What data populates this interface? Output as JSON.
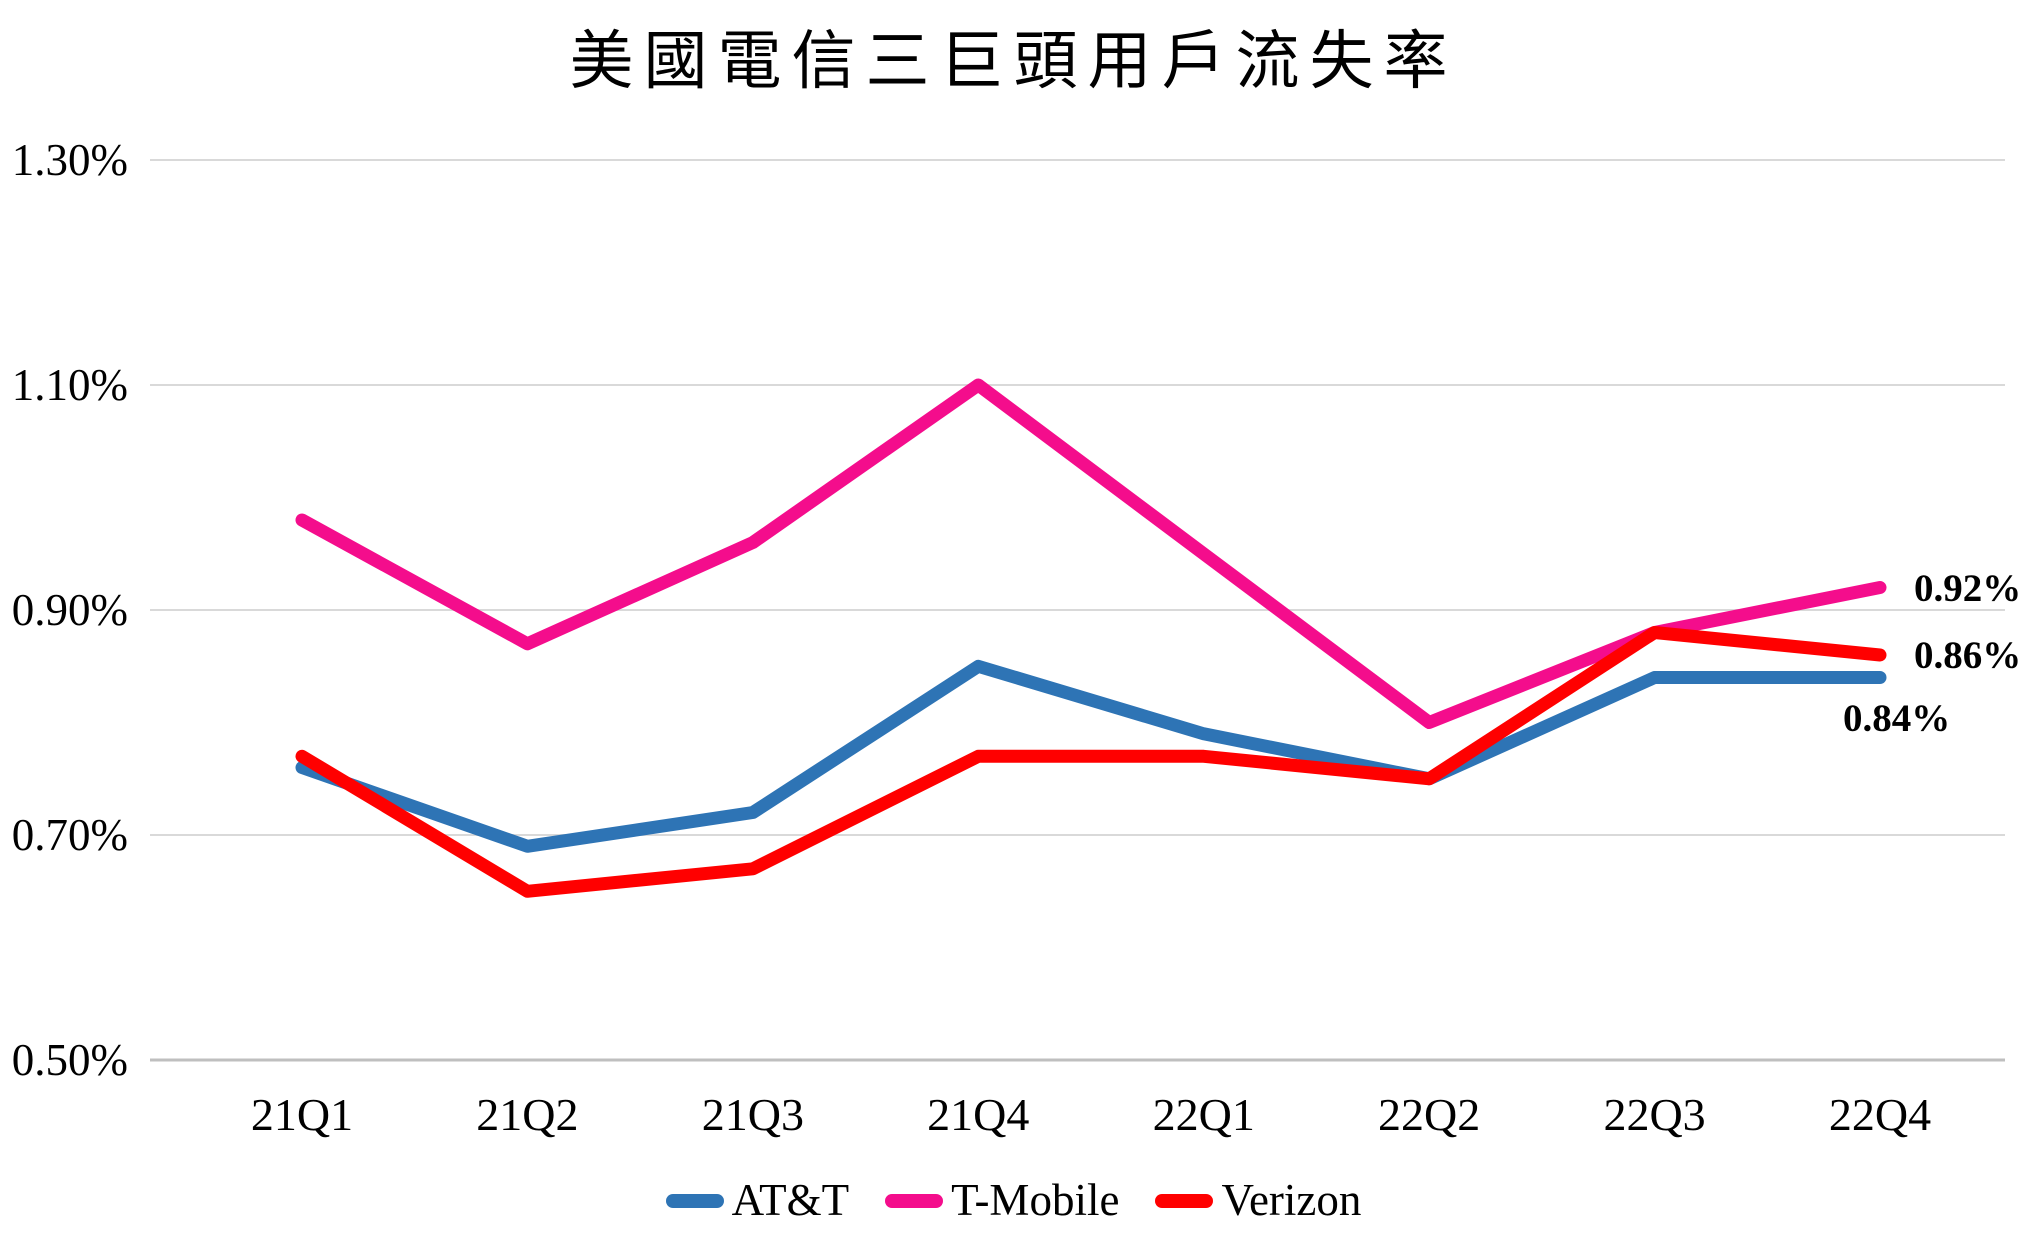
{
  "chart_data": {
    "type": "line",
    "title": "美國電信三巨頭用戶流失率",
    "categories": [
      "21Q1",
      "21Q2",
      "21Q3",
      "21Q4",
      "22Q1",
      "22Q2",
      "22Q3",
      "22Q4"
    ],
    "series": [
      {
        "name": "AT&T",
        "color": "#2E74B5",
        "values": [
          0.76,
          0.69,
          0.72,
          0.85,
          0.79,
          0.75,
          0.84,
          0.84
        ]
      },
      {
        "name": "T-Mobile",
        "color": "#F40D8C",
        "values": [
          0.98,
          0.87,
          0.96,
          1.1,
          0.95,
          0.8,
          0.88,
          0.92
        ]
      },
      {
        "name": "Verizon",
        "color": "#FF0000",
        "values": [
          0.77,
          0.65,
          0.67,
          0.77,
          0.77,
          0.75,
          0.88,
          0.86
        ]
      }
    ],
    "xlabel": "",
    "ylabel": "",
    "y_axis": {
      "min": 0.5,
      "max": 1.3,
      "step": 0.2,
      "ticks": [
        1.3,
        1.1,
        0.9,
        0.7,
        0.5
      ],
      "tick_labels": [
        "1.30%",
        "1.10%",
        "0.90%",
        "0.70%",
        "0.50%"
      ]
    },
    "grid": "horizontal",
    "legend_position": "bottom",
    "legend_entries": [
      "AT&T",
      "T-Mobile",
      "Verizon"
    ],
    "end_labels": [
      {
        "series": "T-Mobile",
        "text": "0.92%"
      },
      {
        "series": "Verizon",
        "text": "0.86%"
      },
      {
        "series": "AT&T",
        "text": "0.84%"
      }
    ],
    "colors": {
      "gridline": "#D9D9D9",
      "axis_line": "#BFBFBF",
      "text": "#000000",
      "background": "#FFFFFF"
    }
  }
}
